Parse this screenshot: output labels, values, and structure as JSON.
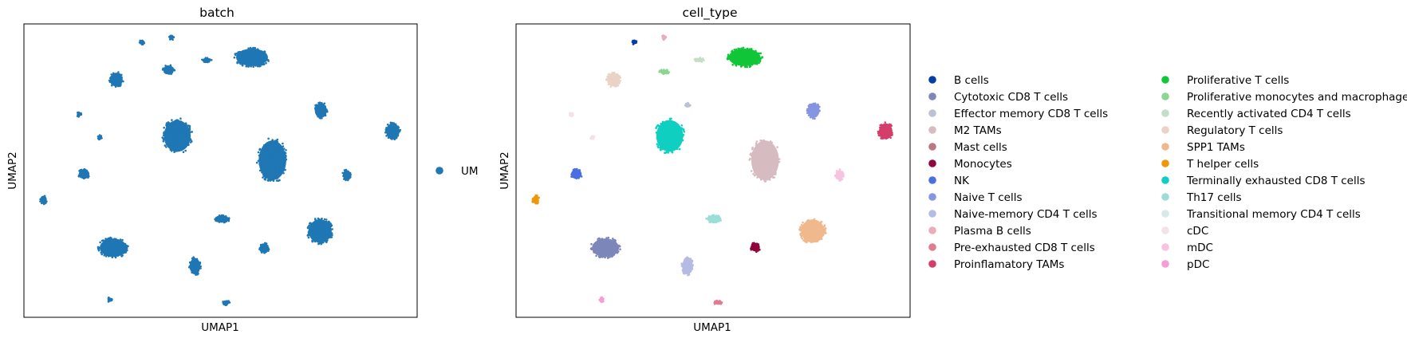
{
  "chart_data": [
    {
      "type": "scatter",
      "title": "batch",
      "xlabel": "UMAP1",
      "ylabel": "UMAP2",
      "xlim": [
        0,
        100
      ],
      "ylim": [
        0,
        100
      ],
      "grid": false,
      "legend_position": "right",
      "legend": [
        {
          "name": "UM",
          "color": "#1f77b4"
        }
      ],
      "series": [
        {
          "name": "UM",
          "color": "#1f77b4",
          "clusters": [
            {
              "x": 30,
              "y": 93.8,
              "rx": 0.6,
              "ry": 0.8
            },
            {
              "x": 37.5,
              "y": 95.3,
              "rx": 0.4,
              "ry": 0.6
            },
            {
              "x": 58,
              "y": 88.6,
              "rx": 4.5,
              "ry": 3.3
            },
            {
              "x": 36.8,
              "y": 84.3,
              "rx": 1.5,
              "ry": 1.7
            },
            {
              "x": 46.5,
              "y": 87.7,
              "rx": 1.2,
              "ry": 0.6
            },
            {
              "x": 23.5,
              "y": 81,
              "rx": 1.8,
              "ry": 2.6
            },
            {
              "x": 14,
              "y": 69.2,
              "rx": 0.5,
              "ry": 0.6
            },
            {
              "x": 75.5,
              "y": 70.5,
              "rx": 1.7,
              "ry": 2.8
            },
            {
              "x": 93.8,
              "y": 63.4,
              "rx": 1.9,
              "ry": 3.0
            },
            {
              "x": 19.3,
              "y": 61.3,
              "rx": 0.5,
              "ry": 0.6
            },
            {
              "x": 39,
              "y": 61.8,
              "rx": 3.8,
              "ry": 6.0
            },
            {
              "x": 63.2,
              "y": 53.5,
              "rx": 3.9,
              "ry": 7.5
            },
            {
              "x": 15.3,
              "y": 48.8,
              "rx": 1.5,
              "ry": 1.8
            },
            {
              "x": 82.1,
              "y": 48.5,
              "rx": 1.1,
              "ry": 1.9
            },
            {
              "x": 5,
              "y": 40.1,
              "rx": 0.9,
              "ry": 1.5
            },
            {
              "x": 50.3,
              "y": 33.5,
              "rx": 2.0,
              "ry": 1.4
            },
            {
              "x": 75.3,
              "y": 29.4,
              "rx": 3.3,
              "ry": 4.4
            },
            {
              "x": 61.1,
              "y": 23.6,
              "rx": 1.3,
              "ry": 1.7
            },
            {
              "x": 22.7,
              "y": 23.7,
              "rx": 3.8,
              "ry": 3.5
            },
            {
              "x": 43.5,
              "y": 17.4,
              "rx": 1.5,
              "ry": 3.1
            },
            {
              "x": 21.8,
              "y": 6,
              "rx": 0.4,
              "ry": 0.6
            },
            {
              "x": 51.3,
              "y": 5,
              "rx": 1.0,
              "ry": 0.8
            }
          ]
        }
      ]
    },
    {
      "type": "scatter",
      "title": "cell_type",
      "xlabel": "UMAP1",
      "ylabel": "UMAP2",
      "xlim": [
        0,
        100
      ],
      "ylim": [
        0,
        100
      ],
      "grid": false,
      "legend_position": "right",
      "legend": [
        {
          "name": "B cells",
          "color": "#023fa5"
        },
        {
          "name": "Cytotoxic CD8 T cells",
          "color": "#7d87b9"
        },
        {
          "name": "Effector memory CD8 T cells",
          "color": "#bec1d4"
        },
        {
          "name": "M2 TAMs",
          "color": "#d6bcc0"
        },
        {
          "name": "Mast cells",
          "color": "#bb7784"
        },
        {
          "name": "Monocytes",
          "color": "#8e063b"
        },
        {
          "name": "NK",
          "color": "#4a6fe3"
        },
        {
          "name": "Naive T cells",
          "color": "#8595e1"
        },
        {
          "name": "Naive-memory CD4 T cells",
          "color": "#b5bbe3"
        },
        {
          "name": "Plasma B cells",
          "color": "#e6afb9"
        },
        {
          "name": "Pre-exhausted CD8 T cells",
          "color": "#e07b91"
        },
        {
          "name": "Proinflamatory TAMs",
          "color": "#d33f6a"
        },
        {
          "name": "Proliferative T cells",
          "color": "#11c638"
        },
        {
          "name": "Proliferative monocytes and macrophages",
          "color": "#8dd593"
        },
        {
          "name": "Recently activated CD4 T cells",
          "color": "#c6dec7"
        },
        {
          "name": "Regulatory T cells",
          "color": "#ead3c6"
        },
        {
          "name": "SPP1 TAMs",
          "color": "#f0b98d"
        },
        {
          "name": "T helper cells",
          "color": "#ef9708"
        },
        {
          "name": "Terminally exhausted CD8 T cells",
          "color": "#0fcfc0"
        },
        {
          "name": "Th17 cells",
          "color": "#9cded6"
        },
        {
          "name": "Transitional memory CD4 T cells",
          "color": "#d5eae7"
        },
        {
          "name": "cDC",
          "color": "#f3e1eb"
        },
        {
          "name": "mDC",
          "color": "#f6c4e1"
        },
        {
          "name": "pDC",
          "color": "#f79cd4"
        }
      ],
      "series": [
        {
          "name": "B cells",
          "color": "#023fa5",
          "clusters": [
            {
              "x": 30,
              "y": 93.8,
              "rx": 0.6,
              "ry": 0.8
            }
          ]
        },
        {
          "name": "Cytotoxic CD8 T cells",
          "color": "#7d87b9",
          "clusters": [
            {
              "x": 22.7,
              "y": 23.7,
              "rx": 3.8,
              "ry": 3.5
            }
          ]
        },
        {
          "name": "Effector memory CD8 T cells",
          "color": "#bec1d4",
          "clusters": [
            {
              "x": 43.5,
              "y": 72.3,
              "rx": 0.7,
              "ry": 0.6
            }
          ]
        },
        {
          "name": "M2 TAMs",
          "color": "#d6bcc0",
          "clusters": [
            {
              "x": 63.2,
              "y": 53.5,
              "rx": 3.9,
              "ry": 7.5
            }
          ]
        },
        {
          "name": "Mast cells",
          "color": "#bb7784",
          "clusters": []
        },
        {
          "name": "Monocytes",
          "color": "#8e063b",
          "clusters": [
            {
              "x": 60.7,
              "y": 23.9,
              "rx": 1.3,
              "ry": 1.6
            }
          ]
        },
        {
          "name": "NK",
          "color": "#4a6fe3",
          "clusters": [
            {
              "x": 15.3,
              "y": 48.8,
              "rx": 1.5,
              "ry": 1.8
            }
          ]
        },
        {
          "name": "Naive T cells",
          "color": "#8595e1",
          "clusters": [
            {
              "x": 75.5,
              "y": 70.5,
              "rx": 1.7,
              "ry": 2.8
            }
          ]
        },
        {
          "name": "Naive-memory CD4 T cells",
          "color": "#b5bbe3",
          "clusters": [
            {
              "x": 43.5,
              "y": 17.4,
              "rx": 1.5,
              "ry": 3.1
            }
          ]
        },
        {
          "name": "Plasma B cells",
          "color": "#e6afb9",
          "clusters": [
            {
              "x": 37.5,
              "y": 95.3,
              "rx": 0.4,
              "ry": 0.6
            }
          ]
        },
        {
          "name": "Pre-exhausted CD8 T cells",
          "color": "#e07b91",
          "clusters": [
            {
              "x": 51.3,
              "y": 5,
              "rx": 1.0,
              "ry": 0.8
            }
          ]
        },
        {
          "name": "Proinflamatory TAMs",
          "color": "#d33f6a",
          "clusters": [
            {
              "x": 93.8,
              "y": 63.4,
              "rx": 1.9,
              "ry": 3.0
            }
          ]
        },
        {
          "name": "Proliferative T cells",
          "color": "#11c638",
          "clusters": [
            {
              "x": 58,
              "y": 88.6,
              "rx": 4.5,
              "ry": 3.3
            }
          ]
        },
        {
          "name": "Proliferative monocytes and macrophages",
          "color": "#8dd593",
          "clusters": [
            {
              "x": 37.6,
              "y": 83.7,
              "rx": 1.3,
              "ry": 0.8
            }
          ]
        },
        {
          "name": "Recently activated CD4 T cells",
          "color": "#c6dec7",
          "clusters": [
            {
              "x": 46.5,
              "y": 87.7,
              "rx": 1.2,
              "ry": 0.6
            }
          ]
        },
        {
          "name": "Regulatory T cells",
          "color": "#ead3c6",
          "clusters": [
            {
              "x": 24.7,
              "y": 81,
              "rx": 1.8,
              "ry": 2.6
            }
          ]
        },
        {
          "name": "SPP1 TAMs",
          "color": "#f0b98d",
          "clusters": [
            {
              "x": 75.3,
              "y": 29.4,
              "rx": 3.3,
              "ry": 4.4
            }
          ]
        },
        {
          "name": "T helper cells",
          "color": "#ef9708",
          "clusters": [
            {
              "x": 5,
              "y": 40.1,
              "rx": 0.9,
              "ry": 1.5
            }
          ]
        },
        {
          "name": "Terminally exhausted CD8 T cells",
          "color": "#0fcfc0",
          "clusters": [
            {
              "x": 39,
              "y": 61.8,
              "rx": 3.8,
              "ry": 6.0
            }
          ]
        },
        {
          "name": "Th17 cells",
          "color": "#9cded6",
          "clusters": [
            {
              "x": 50.3,
              "y": 33.5,
              "rx": 2.0,
              "ry": 1.4
            }
          ]
        },
        {
          "name": "Transitional memory CD4 T cells",
          "color": "#d5eae7",
          "clusters": []
        },
        {
          "name": "cDC",
          "color": "#f3e1eb",
          "clusters": [
            {
              "x": 14,
              "y": 69.2,
              "rx": 0.5,
              "ry": 0.6
            },
            {
              "x": 19.3,
              "y": 61.3,
              "rx": 0.5,
              "ry": 0.6
            }
          ]
        },
        {
          "name": "mDC",
          "color": "#f6c4e1",
          "clusters": [
            {
              "x": 82.1,
              "y": 48.5,
              "rx": 1.1,
              "ry": 1.9
            }
          ]
        },
        {
          "name": "pDC",
          "color": "#f79cd4",
          "clusters": [
            {
              "x": 21.8,
              "y": 6,
              "rx": 0.4,
              "ry": 0.6
            }
          ]
        }
      ]
    }
  ]
}
